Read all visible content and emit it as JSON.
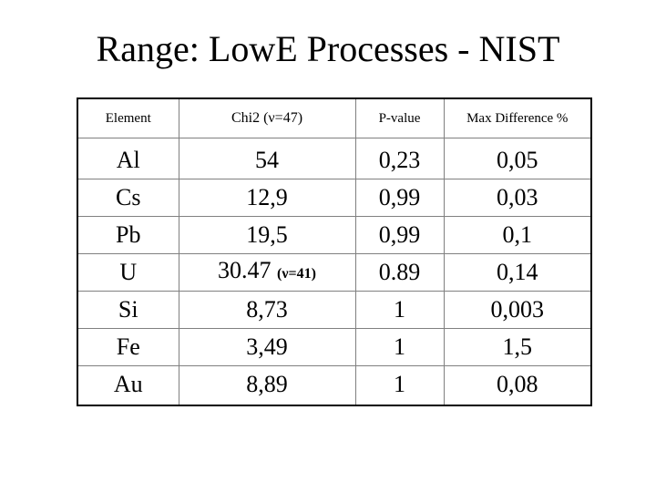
{
  "title": "Range: LowE Processes - NIST",
  "table": {
    "headers": [
      "Element",
      "Chi2 (ν=47)",
      "P-value",
      "Max Difference %"
    ],
    "rows": [
      {
        "element": "Al",
        "chi2": "54",
        "chi2_note": "",
        "pvalue": "0,23",
        "maxdiff": "0,05"
      },
      {
        "element": "Cs",
        "chi2": "12,9",
        "chi2_note": "",
        "pvalue": "0,99",
        "maxdiff": "0,03"
      },
      {
        "element": "Pb",
        "chi2": "19,5",
        "chi2_note": "",
        "pvalue": "0,99",
        "maxdiff": "0,1"
      },
      {
        "element": "U",
        "chi2": "30.47",
        "chi2_note": "(ν=41)",
        "pvalue": "0.89",
        "maxdiff": "0,14"
      },
      {
        "element": "Si",
        "chi2": "8,73",
        "chi2_note": "",
        "pvalue": "1",
        "maxdiff": "0,003"
      },
      {
        "element": "Fe",
        "chi2": "3,49",
        "chi2_note": "",
        "pvalue": "1",
        "maxdiff": "1,5"
      },
      {
        "element": "Au",
        "chi2": "8,89",
        "chi2_note": "",
        "pvalue": "1",
        "maxdiff": "0,08"
      }
    ]
  }
}
